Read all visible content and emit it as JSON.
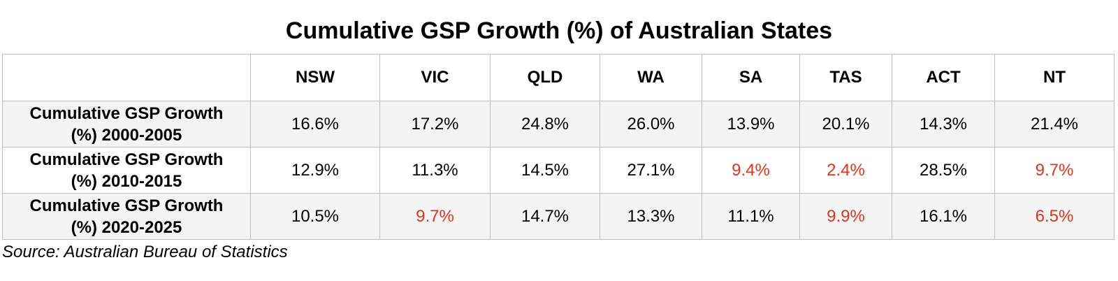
{
  "chart_data": {
    "type": "table",
    "title": "Cumulative GSP Growth (%) of Australian States",
    "corner": "",
    "columns": [
      "NSW",
      "VIC",
      "QLD",
      "WA",
      "SA",
      "TAS",
      "ACT",
      "NT"
    ],
    "rows": [
      {
        "label_line1": "Cumulative GSP Growth",
        "label_line2": "(%) 2000-2005",
        "values": [
          "16.6%",
          "17.2%",
          "24.8%",
          "26.0%",
          "13.9%",
          "20.1%",
          "14.3%",
          "21.4%"
        ],
        "highlighted": [
          false,
          false,
          false,
          false,
          false,
          false,
          false,
          false
        ]
      },
      {
        "label_line1": "Cumulative GSP Growth",
        "label_line2": "(%) 2010-2015",
        "values": [
          "12.9%",
          "11.3%",
          "14.5%",
          "27.1%",
          "9.4%",
          "2.4%",
          "28.5%",
          "9.7%"
        ],
        "highlighted": [
          false,
          false,
          false,
          false,
          true,
          true,
          false,
          true
        ]
      },
      {
        "label_line1": "Cumulative GSP Growth",
        "label_line2": "(%) 2020-2025",
        "values": [
          "10.5%",
          "9.7%",
          "14.7%",
          "13.3%",
          "11.1%",
          "9.9%",
          "16.1%",
          "6.5%"
        ],
        "highlighted": [
          false,
          true,
          false,
          false,
          false,
          true,
          false,
          true
        ]
      }
    ],
    "highlight_color": "#e0341c",
    "text_color": "#000000",
    "shaded_row_color": "#f4f4f4",
    "border_color": "#bfbfbf",
    "source": "Source: Australian Bureau of Statistics"
  }
}
